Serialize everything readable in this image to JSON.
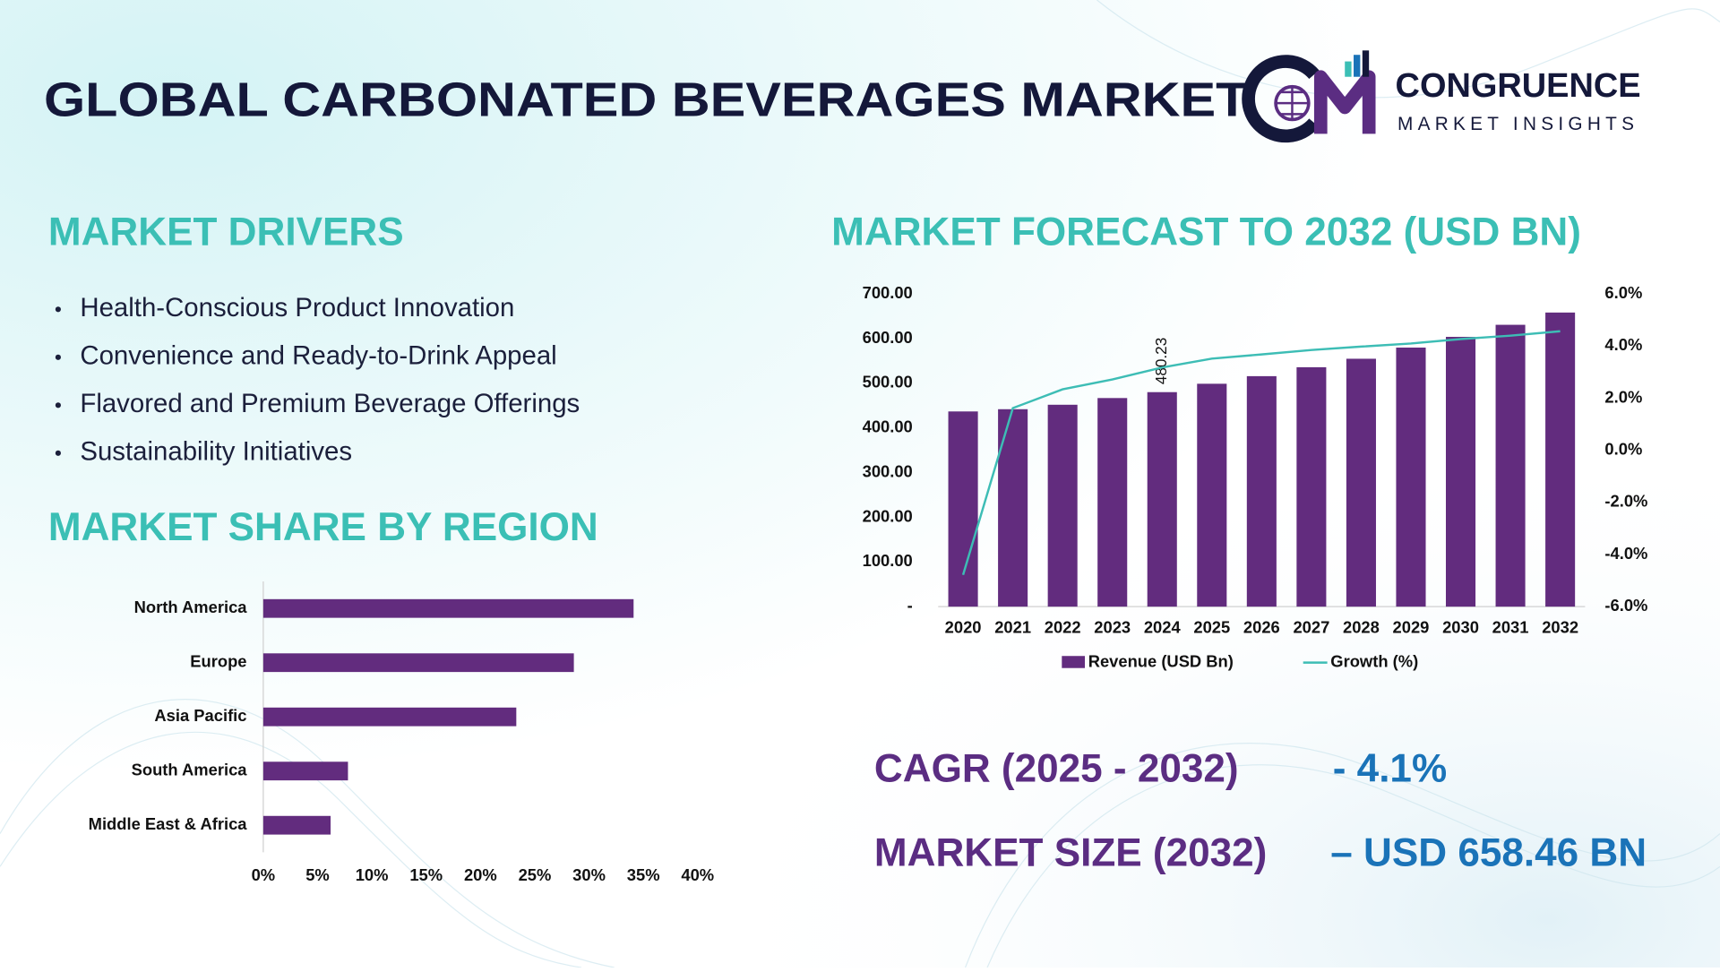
{
  "header": {
    "title": "GLOBAL CARBONATED BEVERAGES MARKET",
    "brand": "CONGRUENCE",
    "brand_sub": "MARKET INSIGHTS"
  },
  "drivers": {
    "title": "MARKET DRIVERS",
    "items": [
      "Health-Conscious Product Innovation",
      "Convenience and Ready-to-Drink Appeal",
      "Flavored and Premium Beverage Offerings",
      "Sustainability Initiatives"
    ]
  },
  "stats": {
    "cagr_label": "CAGR (2025 - 2032)",
    "cagr_value": "- 4.1%",
    "size_label": "MARKET SIZE (2032)",
    "size_value": "– USD 658.46 BN"
  },
  "chart_data": [
    {
      "type": "bar",
      "horizontal": true,
      "title": "MARKET SHARE BY REGION",
      "categories": [
        "North America",
        "Europe",
        "Asia Pacific",
        "South America",
        "Middle East & Africa"
      ],
      "values": [
        34.1,
        28.6,
        23.3,
        7.8,
        6.2
      ],
      "color": "#622c7e",
      "xlim": [
        0,
        40
      ],
      "xticks": [
        {
          "value": 0,
          "label": "0%"
        },
        {
          "value": 5,
          "label": "5%"
        },
        {
          "value": 10,
          "label": "10%"
        },
        {
          "value": 15,
          "label": "15%"
        },
        {
          "value": 20,
          "label": "20%"
        },
        {
          "value": 25,
          "label": "25%"
        },
        {
          "value": 30,
          "label": "30%"
        },
        {
          "value": 35,
          "label": "35%"
        },
        {
          "value": 40,
          "label": "40%"
        }
      ]
    },
    {
      "type": "combo",
      "title": "MARKET FORECAST TO 2032 (USD BN)",
      "categories": [
        "2020",
        "2021",
        "2022",
        "2023",
        "2024",
        "2025",
        "2026",
        "2027",
        "2028",
        "2029",
        "2030",
        "2031",
        "2032"
      ],
      "series": [
        {
          "name": "Revenue (USD Bn)",
          "type": "bar",
          "color": "#622c7e",
          "values": [
            437,
            442,
            452,
            467,
            480.23,
            499,
            516,
            536,
            555,
            580,
            604,
            631,
            658.46
          ],
          "value_labels": [
            null,
            null,
            null,
            null,
            "480.23",
            null,
            null,
            null,
            null,
            null,
            null,
            null,
            null
          ]
        },
        {
          "name": "Growth (%)",
          "type": "line",
          "color": "#3dbdb5",
          "axis": "y2",
          "values": [
            -4.78,
            1.62,
            2.34,
            2.72,
            3.18,
            3.52,
            3.68,
            3.85,
            3.98,
            4.1,
            4.27,
            4.4,
            4.57
          ]
        }
      ],
      "ylim": [
        0,
        700
      ],
      "yticks": [
        {
          "value": 0,
          "label": "-"
        },
        {
          "value": 100,
          "label": "100.00"
        },
        {
          "value": 200,
          "label": "200.00"
        },
        {
          "value": 300,
          "label": "300.00"
        },
        {
          "value": 400,
          "label": "400.00"
        },
        {
          "value": 500,
          "label": "500.00"
        },
        {
          "value": 600,
          "label": "600.00"
        },
        {
          "value": 700,
          "label": "700.00"
        }
      ],
      "y2lim": [
        -6,
        6
      ],
      "y2ticks": [
        {
          "value": -6,
          "label": "-6.0%"
        },
        {
          "value": -4,
          "label": "-4.0%"
        },
        {
          "value": -2,
          "label": "-2.0%"
        },
        {
          "value": 0,
          "label": "0.0%"
        },
        {
          "value": 2,
          "label": "2.0%"
        },
        {
          "value": 4,
          "label": "4.0%"
        },
        {
          "value": 6,
          "label": "6.0%"
        }
      ]
    }
  ]
}
